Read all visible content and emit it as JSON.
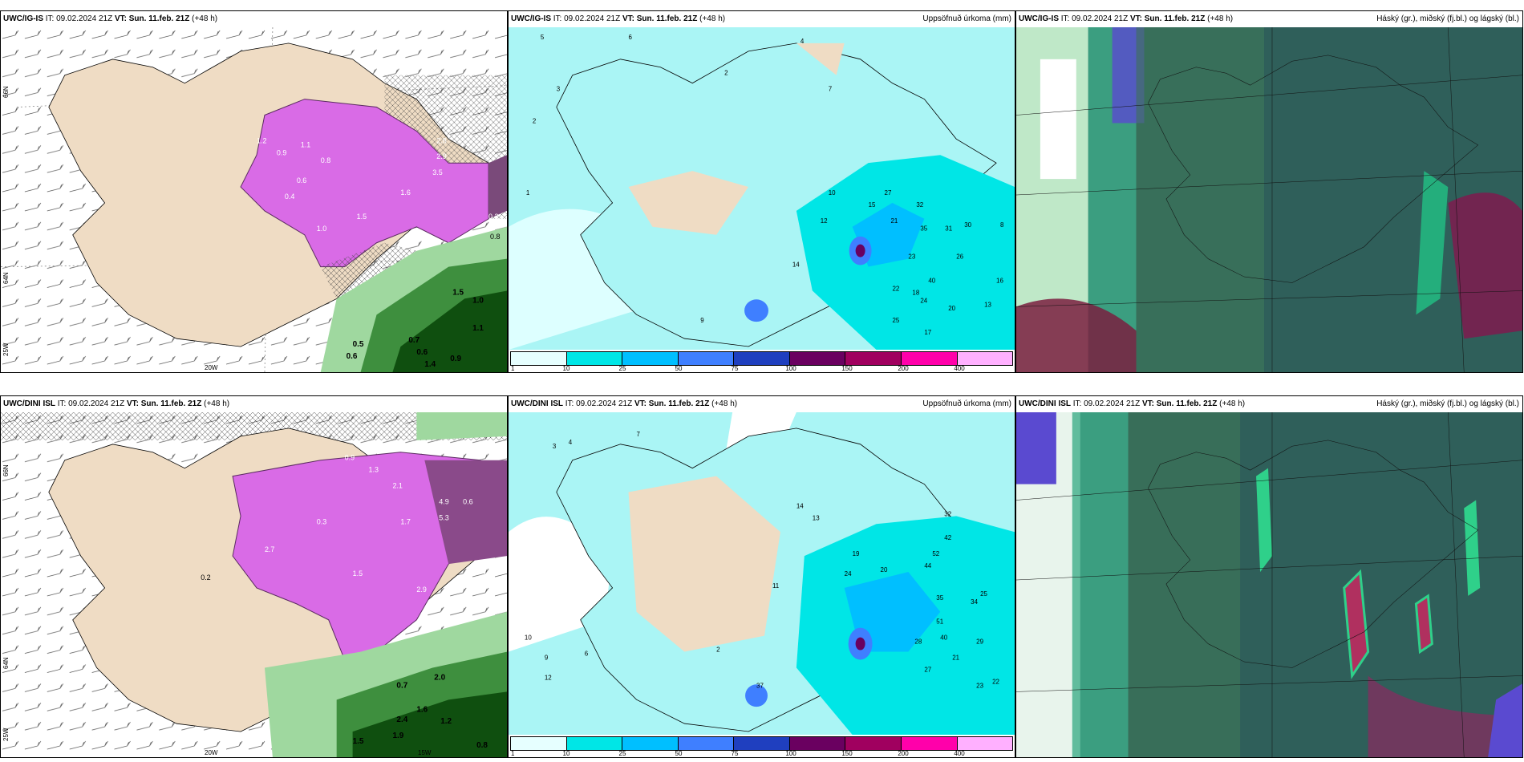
{
  "panels": [
    {
      "model": "UWC/IG-IS",
      "it": "09.02.2024 21Z",
      "vt": "Sun. 11.feb. 21Z",
      "lead": "(+48 h)",
      "right_title": "",
      "lat_labels": [
        "66N",
        "64N",
        "25W"
      ],
      "lon_labels": [
        "20W"
      ],
      "values": [
        "1.2",
        "0.9",
        "1.1",
        "0.8",
        "2.8",
        "2.9",
        "3.5",
        "1.6",
        "1.5",
        "0.6",
        "0.4",
        "1.0",
        "0.3",
        "0.8",
        "0.5",
        "0.6",
        "1.5",
        "1.0",
        "1.1",
        "0.9",
        "0.7",
        "0.6",
        "1.4"
      ]
    },
    {
      "model": "UWC/IG-IS",
      "it": "09.02.2024 21Z",
      "vt": "Sun. 11.feb. 21Z",
      "lead": "(+48 h)",
      "right_title": "Uppsöfnuð úrkoma (mm)",
      "values": [
        "5",
        "2",
        "3",
        "1",
        "6",
        "4",
        "7",
        "2",
        "10",
        "12",
        "14",
        "15",
        "27",
        "32",
        "35",
        "31",
        "30",
        "23",
        "20",
        "17",
        "40",
        "26",
        "16",
        "13",
        "21",
        "18",
        "25",
        "22",
        "24",
        "8",
        "9"
      ]
    },
    {
      "model": "UWC/IG-IS",
      "it": "09.02.2024 21Z",
      "vt": "Sun. 11.feb. 21Z",
      "lead": "(+48 h)",
      "right_title": "Háský (gr.), miðský (fj.bl.) og lágský (bl.)"
    },
    {
      "model": "UWC/DINI ISL",
      "it": "09.02.2024 21Z",
      "vt": "Sun. 11.feb. 21Z",
      "lead": "(+48 h)",
      "right_title": "",
      "lat_labels": [
        "66N",
        "64N",
        "25W"
      ],
      "lon_labels": [
        "20W",
        "15W"
      ],
      "values": [
        "0.9",
        "1.3",
        "2.1",
        "0.3",
        "1.7",
        "4.9",
        "5.3",
        "2.9",
        "1.5",
        "0.7",
        "0.6",
        "2.0",
        "1.6",
        "2.4",
        "1.2",
        "1.9",
        "1.5",
        "0.8",
        "3.8",
        "2.7",
        "0.2"
      ]
    },
    {
      "model": "UWC/DINI ISL",
      "it": "09.02.2024 21Z",
      "vt": "Sun. 11.feb. 21Z",
      "lead": "(+48 h)",
      "right_title": "Uppsöfnuð úrkoma (mm)",
      "values": [
        "3",
        "10",
        "4",
        "7",
        "12",
        "14",
        "11",
        "13",
        "19",
        "24",
        "20",
        "32",
        "42",
        "52",
        "44",
        "35",
        "34",
        "51",
        "40",
        "28",
        "27",
        "29",
        "21",
        "25",
        "23",
        "22",
        "9",
        "6",
        "37",
        "2"
      ]
    },
    {
      "model": "UWC/DINI ISL",
      "it": "09.02.2024 21Z",
      "vt": "Sun. 11.feb. 21Z",
      "lead": "(+48 h)",
      "right_title": "Háský (gr.), miðský (fj.bl.) og lágský (bl.)"
    }
  ],
  "colorbar": {
    "ticks": [
      "1",
      "10",
      "25",
      "50",
      "75",
      "100",
      "150",
      "200",
      "400"
    ],
    "colors": [
      "#e6ffff",
      "#00e6e6",
      "#00bfff",
      "#3f7fff",
      "#1f3fbf",
      "#6a0060",
      "#a0005f",
      "#ff00aa",
      "#ffb0ff"
    ]
  },
  "colors": {
    "land": "#efdcc4",
    "precip_low_cyan": "#aaf5f5",
    "precip_mid": "#00e6e6",
    "snow": "#d96be6",
    "rain": "#1a6b1a",
    "cloud_base": "#2f5f5a"
  }
}
